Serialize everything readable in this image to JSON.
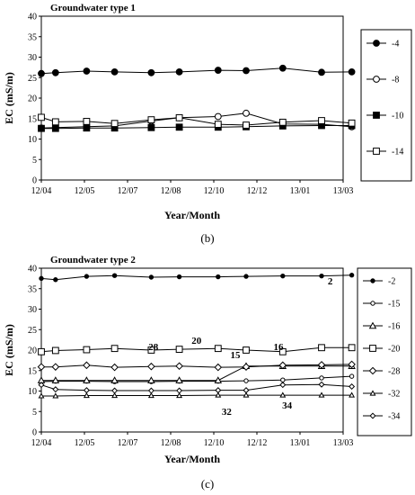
{
  "chart_data": [
    {
      "type": "line",
      "title": "Groundwater type 1",
      "xlabel": "Year/Month",
      "ylabel": "EC (mS/m)",
      "ylim": [
        0,
        40
      ],
      "yticks": [
        "0",
        "5",
        "10",
        "15",
        "20",
        "25",
        "30",
        "35",
        "40"
      ],
      "xticks": [
        "12/04",
        "12/05",
        "12/07",
        "12/08",
        "12/10",
        "12/12",
        "13/01",
        "13/03"
      ],
      "panel_label": "(b)",
      "legend_position": "right",
      "series": [
        {
          "name": "4",
          "marker": "filled-circle",
          "x": [
            0,
            0.33,
            1.05,
            1.7,
            2.55,
            3.2,
            4.1,
            4.75,
            5.6,
            6.5,
            7.2
          ],
          "y": [
            26,
            26.2,
            26.6,
            26.4,
            26.2,
            26.4,
            26.8,
            26.7,
            27.3,
            26.3,
            26.4
          ]
        },
        {
          "name": "8",
          "marker": "open-circle",
          "x": [
            0,
            0.33,
            1.05,
            1.7,
            2.55,
            3.2,
            4.1,
            4.75,
            5.6,
            6.5,
            7.2
          ],
          "y": [
            12.7,
            12.8,
            13.0,
            13.2,
            14.4,
            15.2,
            15.5,
            16.3,
            13.7,
            13.6,
            13.0
          ]
        },
        {
          "name": "10",
          "marker": "filled-square",
          "x": [
            0,
            0.33,
            1.05,
            1.7,
            2.55,
            3.2,
            4.1,
            4.75,
            5.6,
            6.5,
            7.2
          ],
          "y": [
            12.6,
            12.6,
            12.7,
            12.7,
            12.8,
            12.9,
            12.9,
            13.0,
            13.2,
            13.3,
            13.3
          ]
        },
        {
          "name": "14",
          "marker": "open-square",
          "x": [
            0,
            0.33,
            1.05,
            1.7,
            2.55,
            3.2,
            4.1,
            4.75,
            5.6,
            6.5,
            7.2
          ],
          "y": [
            15.3,
            14.2,
            14.3,
            13.8,
            14.7,
            15.2,
            13.6,
            13.4,
            14.1,
            14.5,
            13.9
          ]
        }
      ],
      "annotations": []
    },
    {
      "type": "line",
      "title": "Groundwater type 2",
      "xlabel": "Year/Month",
      "ylabel": "EC (mS/m)",
      "ylim": [
        0,
        40
      ],
      "yticks": [
        "0",
        "5",
        "10",
        "15",
        "20",
        "25",
        "30",
        "35",
        "40"
      ],
      "xticks": [
        "12/04",
        "12/05",
        "12/07",
        "12/08",
        "12/10",
        "12/12",
        "13/01",
        "13/03"
      ],
      "panel_label": "(c)",
      "legend_position": "right",
      "series": [
        {
          "name": "2",
          "marker": "small-filled-circle",
          "x": [
            0,
            0.33,
            1.05,
            1.7,
            2.55,
            3.2,
            4.1,
            4.75,
            5.6,
            6.5,
            7.2
          ],
          "y": [
            37.5,
            37.2,
            38.0,
            38.2,
            37.8,
            37.9,
            37.9,
            38.0,
            38.1,
            38.1,
            38.3
          ]
        },
        {
          "name": "15",
          "marker": "small-open-circle",
          "x": [
            0,
            0.33,
            1.05,
            1.7,
            2.55,
            3.2,
            4.1,
            4.75,
            5.6,
            6.5,
            7.2
          ],
          "y": [
            12.3,
            12.4,
            12.4,
            12.3,
            12.3,
            12.4,
            12.4,
            12.5,
            12.7,
            13.2,
            13.6
          ]
        },
        {
          "name": "16",
          "marker": "open-triangle",
          "x": [
            0,
            0.33,
            1.05,
            1.7,
            2.55,
            3.2,
            4.1,
            4.75,
            5.6,
            6.5,
            7.2
          ],
          "y": [
            12.6,
            12.6,
            12.6,
            12.6,
            12.6,
            12.6,
            12.6,
            16.1,
            16.1,
            16.1,
            16.1
          ]
        },
        {
          "name": "20",
          "marker": "open-square",
          "x": [
            0,
            0.33,
            1.05,
            1.7,
            2.55,
            3.2,
            4.1,
            4.75,
            5.6,
            6.5,
            7.2
          ],
          "y": [
            19.6,
            19.9,
            20.1,
            20.4,
            20.0,
            20.2,
            20.4,
            20.0,
            19.6,
            20.6,
            20.6
          ]
        },
        {
          "name": "28",
          "marker": "open-diamond",
          "x": [
            0,
            0.33,
            1.05,
            1.7,
            2.55,
            3.2,
            4.1,
            4.75,
            5.6,
            6.5,
            7.2
          ],
          "y": [
            15.9,
            15.9,
            16.3,
            15.8,
            16.0,
            16.1,
            15.8,
            15.9,
            16.3,
            16.4,
            16.5
          ]
        },
        {
          "name": "32",
          "marker": "small-open-triangle",
          "x": [
            0,
            0.33,
            1.05,
            1.7,
            2.55,
            3.2,
            4.1,
            4.75,
            5.6,
            6.5,
            7.2
          ],
          "y": [
            8.8,
            8.8,
            8.9,
            8.9,
            8.9,
            8.9,
            9.0,
            9.0,
            9.0,
            9.0,
            9.0
          ]
        },
        {
          "name": "34",
          "marker": "open-diamond-small",
          "x": [
            0,
            0.33,
            1.05,
            1.7,
            2.55,
            3.2,
            4.1,
            4.75,
            5.6,
            6.5,
            7.2
          ],
          "y": [
            11.5,
            10.4,
            10.2,
            10.1,
            10.1,
            10.1,
            10.2,
            10.2,
            11.5,
            11.6,
            11.1
          ]
        }
      ],
      "annotations": [
        {
          "text": "2",
          "x": 6.7,
          "y": 36.0
        },
        {
          "text": "28",
          "x": 2.6,
          "y": 20.0
        },
        {
          "text": "20",
          "x": 3.6,
          "y": 21.5
        },
        {
          "text": "16",
          "x": 5.5,
          "y": 20.0
        },
        {
          "text": "15",
          "x": 4.5,
          "y": 18.0
        },
        {
          "text": "32",
          "x": 4.3,
          "y": 4.2
        },
        {
          "text": "34",
          "x": 5.7,
          "y": 5.7
        }
      ]
    }
  ]
}
